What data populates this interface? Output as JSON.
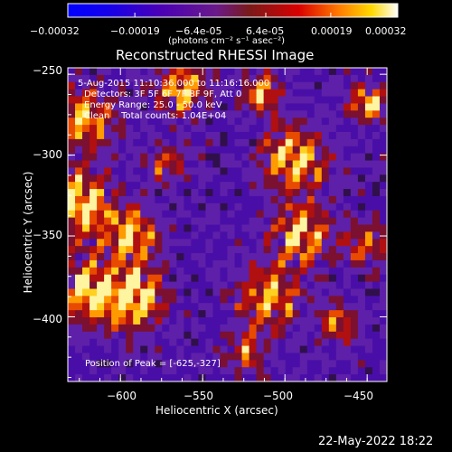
{
  "chart_data": {
    "type": "heatmap",
    "title": "Reconstructed RHESSI Image",
    "xlabel": "Heliocentric X (arcsec)",
    "ylabel": "Heliocentric Y (arcsec)",
    "xlim": [
      -632,
      -438
    ],
    "ylim": [
      -440,
      -246
    ],
    "xticks": [
      -600,
      -550,
      -500,
      -450
    ],
    "yticks": [
      -250,
      -300,
      -350,
      -400
    ],
    "colorbar": {
      "range": [
        -0.00032,
        0.00032
      ],
      "ticks": [
        -0.00032,
        -0.00019,
        -6.4e-05,
        6.4e-05,
        0.00019,
        0.00032
      ],
      "tick_labels": [
        "-0.00032",
        "-0.00019",
        "-6.4e-05",
        "6.4e-05",
        "0.00019",
        "0.00032"
      ],
      "units_label": "(photons cm⁻² s⁻¹ asec⁻²)"
    },
    "annotations": [
      "5-Aug-2015 11:10:36.000 to 11:16:16.000",
      "Detectors: 3F 5F 6F 7F 8F 9F, Att 0",
      "Energy Range: 25.0 - 50.0 keV",
      "Clean    Total counts: 1.04E+04"
    ],
    "peak_label": "Position of Peak = [-625,-327]",
    "peak": {
      "x": -625,
      "y": -327
    }
  },
  "footer": {
    "timestamp": "22-May-2022 18:22"
  },
  "colors": {
    "background": "#000000",
    "foreground": "#ffffff"
  }
}
